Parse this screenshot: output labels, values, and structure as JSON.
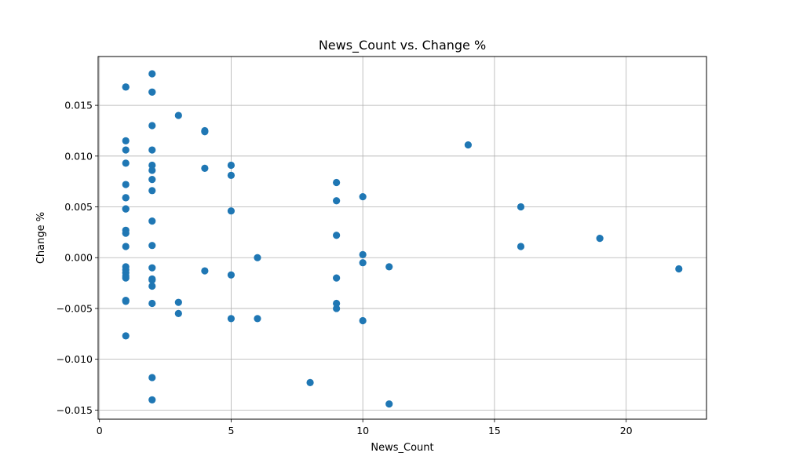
{
  "chart_data": {
    "type": "scatter",
    "title": "News_Count vs. Change %",
    "xlabel": "News_Count",
    "ylabel": "Change %",
    "xlim": [
      -0.05,
      23.05
    ],
    "ylim": [
      -0.0159,
      0.0198
    ],
    "xticks": [
      0,
      5,
      10,
      15,
      20
    ],
    "xtick_labels": [
      "0",
      "5",
      "10",
      "15",
      "20"
    ],
    "yticks": [
      -0.015,
      -0.01,
      -0.005,
      0.0,
      0.005,
      0.01,
      0.015
    ],
    "ytick_labels": [
      "−0.015",
      "−0.010",
      "−0.005",
      "0.000",
      "0.005",
      "0.010",
      "0.015"
    ],
    "grid": true,
    "point_color": "#1f77b4",
    "series": [
      {
        "x": [
          1,
          1,
          1,
          1,
          1,
          1,
          1,
          1,
          1,
          1,
          1,
          1,
          1,
          1,
          1,
          1,
          1,
          1,
          1,
          1,
          1,
          2,
          2,
          2,
          2,
          2,
          2,
          2,
          2,
          2,
          2,
          2,
          2,
          2,
          2,
          2,
          2,
          2,
          2,
          3,
          3,
          3,
          4,
          4,
          4,
          4,
          5,
          5,
          5,
          5,
          5,
          6,
          6,
          8,
          9,
          9,
          9,
          9,
          9,
          9,
          10,
          10,
          10,
          10,
          11,
          11,
          14,
          16,
          16,
          19,
          22
        ],
        "y": [
          0.0168,
          0.0115,
          0.0106,
          0.0093,
          0.0072,
          0.0059,
          0.0048,
          0.0027,
          0.0024,
          0.0011,
          -0.0009,
          -0.0012,
          -0.0015,
          -0.0018,
          -0.002,
          -0.0042,
          -0.0043,
          -0.0077,
          0.0168,
          0.0059,
          0.0048,
          0.0181,
          0.0163,
          0.013,
          0.0106,
          0.0091,
          0.0086,
          0.0077,
          0.0066,
          0.0036,
          0.0012,
          -0.001,
          -0.0021,
          -0.0022,
          -0.0028,
          -0.0045,
          -0.0118,
          -0.014,
          0.0163,
          0.014,
          -0.0044,
          -0.0055,
          0.0125,
          0.0124,
          0.0088,
          -0.0013,
          0.0091,
          0.0081,
          0.0046,
          -0.0017,
          -0.006,
          0.0,
          -0.006,
          -0.0123,
          0.0074,
          0.0056,
          0.0022,
          -0.002,
          -0.0045,
          -0.005,
          0.006,
          0.0003,
          -0.0005,
          -0.0062,
          -0.0009,
          -0.0144,
          0.0111,
          0.005,
          0.0011,
          0.0019,
          -0.0011
        ]
      }
    ]
  }
}
